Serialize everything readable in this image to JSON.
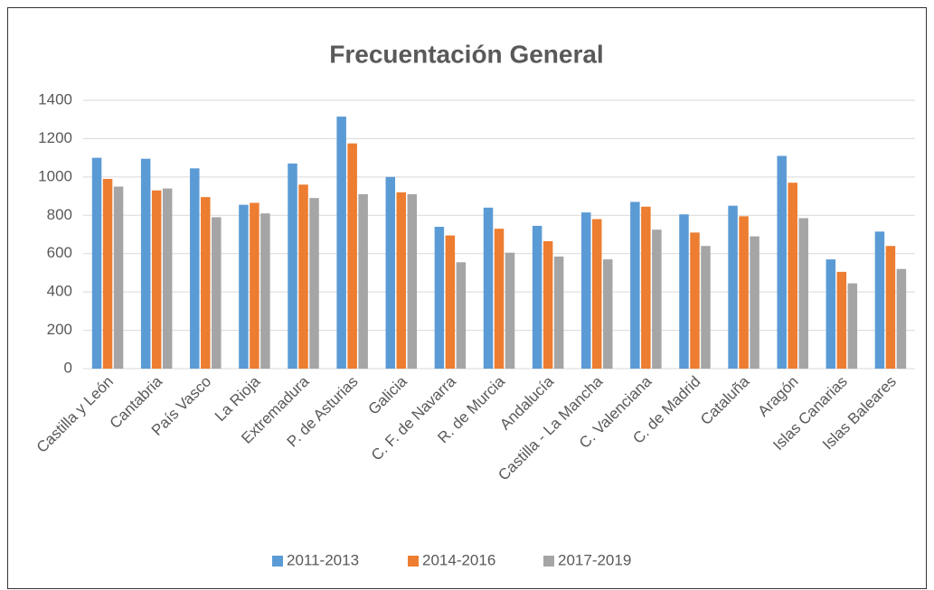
{
  "chart_data": {
    "type": "bar",
    "title": "Frecuentación General",
    "categories": [
      "Castilla y León",
      "Cantabria",
      "País Vasco",
      "La Rioja",
      "Extremadura",
      "P. de Asturias",
      "Galicia",
      "C. F. de Navarra",
      "R. de Murcia",
      "Andalucía",
      "Castilla - La Mancha",
      "C. Valenciana",
      "C. de Madrid",
      "Cataluña",
      "Aragón",
      "Islas Canarias",
      "Islas Baleares"
    ],
    "series": [
      {
        "name": "2011-2013",
        "color": "#5b9bd5",
        "values": [
          1100,
          1095,
          1045,
          855,
          1070,
          1315,
          1000,
          740,
          840,
          745,
          815,
          870,
          805,
          850,
          1110,
          570,
          715
        ]
      },
      {
        "name": "2014-2016",
        "color": "#ed7d31",
        "values": [
          990,
          930,
          895,
          865,
          960,
          1175,
          920,
          695,
          730,
          665,
          780,
          845,
          710,
          795,
          970,
          505,
          640
        ]
      },
      {
        "name": "2017-2019",
        "color": "#a5a5a5",
        "values": [
          950,
          940,
          790,
          810,
          890,
          910,
          910,
          555,
          605,
          585,
          570,
          725,
          640,
          690,
          785,
          445,
          520
        ]
      }
    ],
    "ylim": [
      0,
      1400
    ],
    "yticks": [
      0,
      200,
      400,
      600,
      800,
      1000,
      1200,
      1400
    ],
    "grid": true,
    "legend": "bottom"
  }
}
